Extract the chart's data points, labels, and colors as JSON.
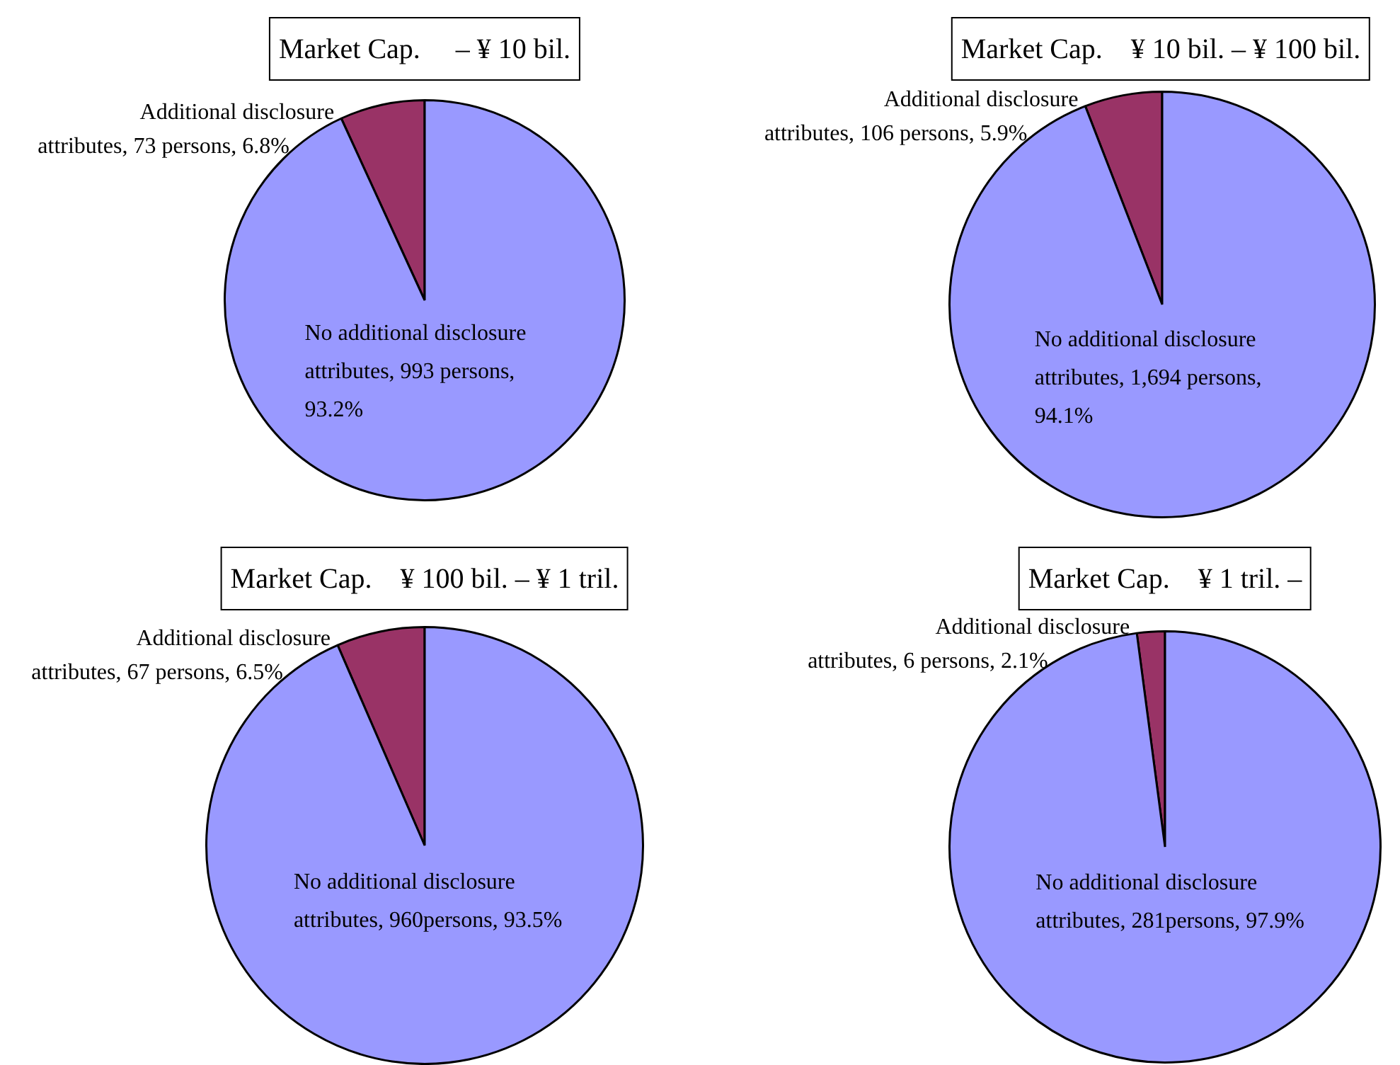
{
  "chart_data": [
    {
      "type": "pie",
      "title": "Market Cap.　 – ¥ 10 bil.",
      "categories": [
        "Additional disclosure attributes",
        "No additional disclosure attributes"
      ],
      "values": [
        73,
        993
      ],
      "colors": [
        "#993366",
        "#9999ff"
      ],
      "value_labels": [
        "73 persons, 6.8%",
        "993 persons, 93.2%"
      ]
    },
    {
      "type": "pie",
      "title": "Market Cap.　¥ 10 bil. – ¥ 100 bil.",
      "categories": [
        "Additional disclosure attributes",
        "No additional disclosure attributes"
      ],
      "values": [
        106,
        1694
      ],
      "colors": [
        "#993366",
        "#9999ff"
      ],
      "value_labels": [
        "106 persons, 5.9%",
        "1,694 persons, 94.1%"
      ]
    },
    {
      "type": "pie",
      "title": "Market Cap.　¥ 100 bil. – ¥ 1 tril.",
      "categories": [
        "Additional disclosure attributes",
        "No additional disclosure attributes"
      ],
      "values": [
        67,
        960
      ],
      "colors": [
        "#993366",
        "#9999ff"
      ],
      "value_labels": [
        "67 persons, 6.5%",
        "960persons, 93.5%"
      ]
    },
    {
      "type": "pie",
      "title": "Market Cap.　¥ 1 tril. –",
      "categories": [
        "Additional disclosure attributes",
        "No additional disclosure attributes"
      ],
      "values": [
        6,
        281
      ],
      "colors": [
        "#993366",
        "#9999ff"
      ],
      "value_labels": [
        "6 persons, 2.1%",
        "281persons, 97.9%"
      ]
    }
  ]
}
